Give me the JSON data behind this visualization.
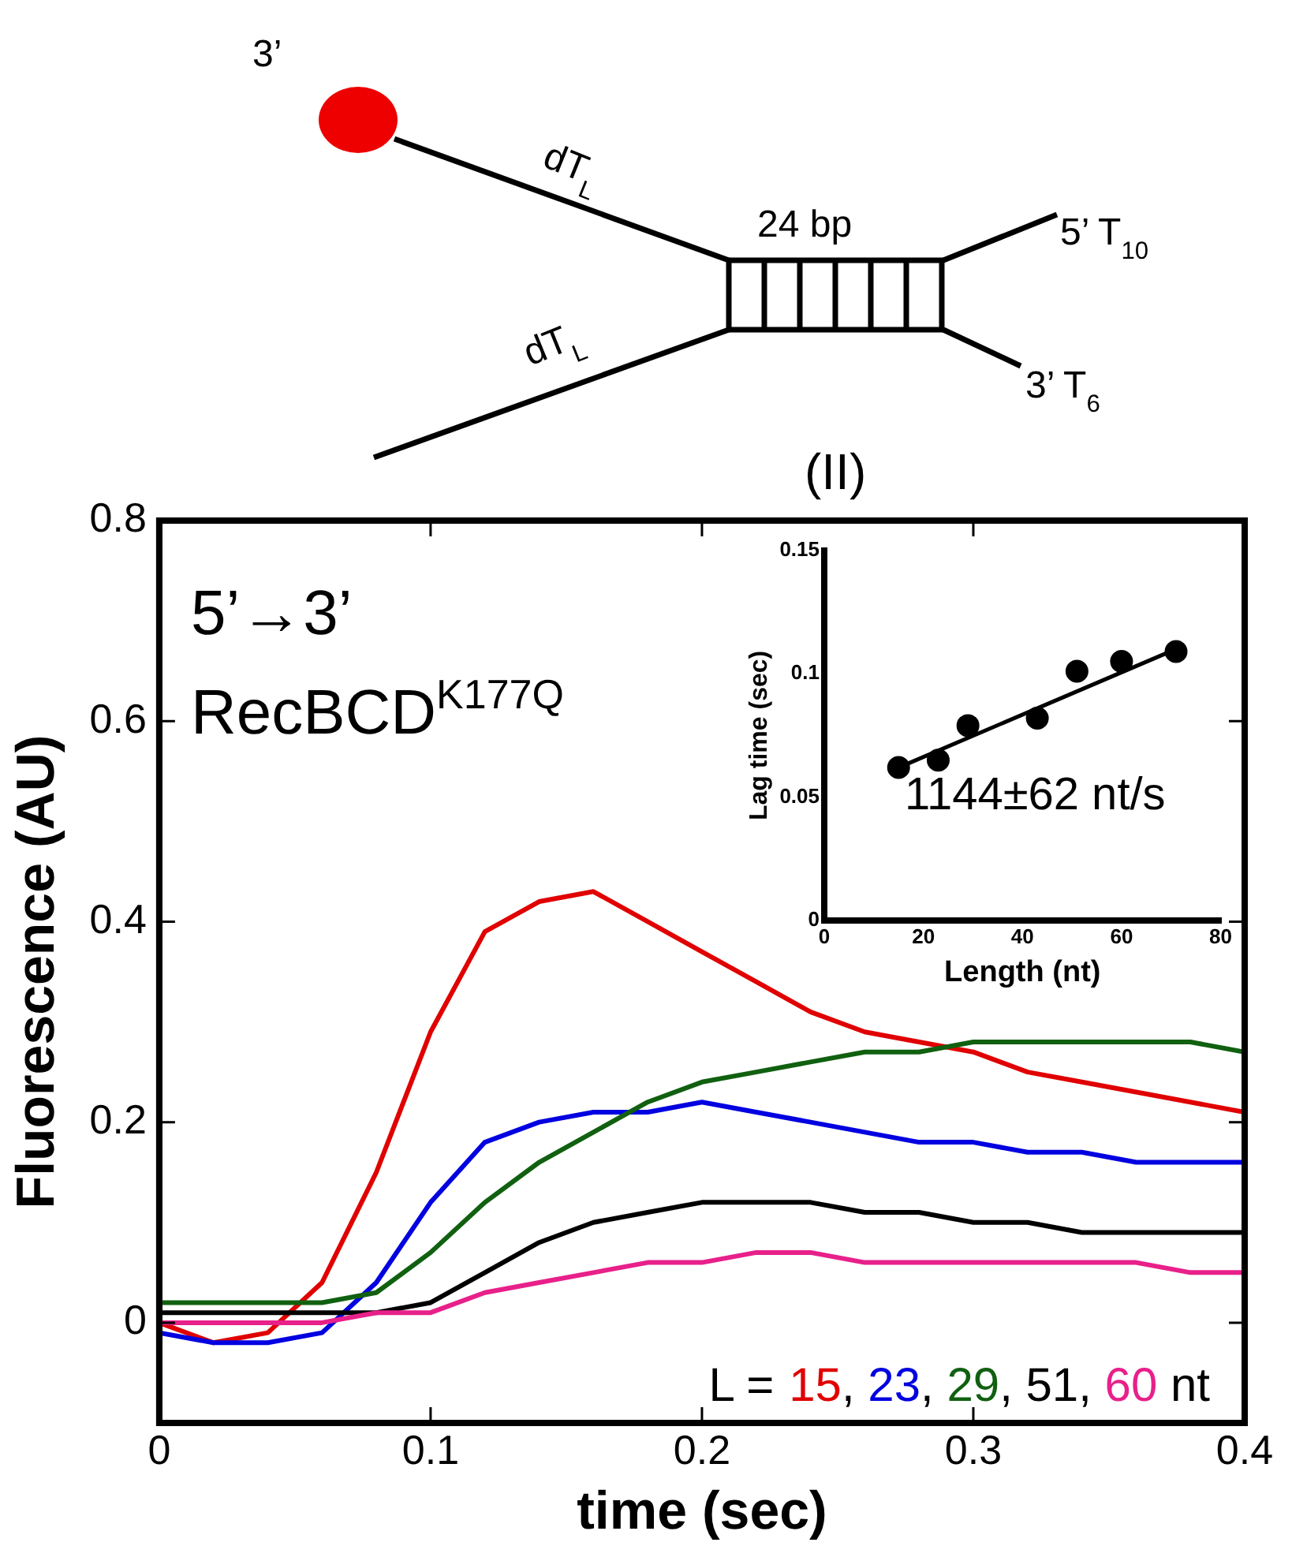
{
  "chart_data": [
    {
      "type": "line",
      "xlabel": "time (sec)",
      "ylabel": "Fluorescence (AU)",
      "legend_title": "L =",
      "x": [
        0,
        0.02,
        0.04,
        0.06,
        0.08,
        0.1,
        0.12,
        0.14,
        0.16,
        0.18,
        0.2,
        0.22,
        0.24,
        0.26,
        0.28,
        0.3,
        0.32,
        0.34,
        0.36,
        0.38,
        0.4
      ],
      "series": [
        {
          "name": "15",
          "color": "#e00000",
          "values": [
            0,
            -0.02,
            -0.01,
            0.04,
            0.15,
            0.29,
            0.39,
            0.42,
            0.43,
            0.4,
            0.37,
            0.34,
            0.31,
            0.29,
            0.28,
            0.27,
            0.25,
            0.24,
            0.23,
            0.22,
            0.21
          ]
        },
        {
          "name": "23",
          "color": "#0000e0",
          "values": [
            -0.01,
            -0.02,
            -0.02,
            -0.01,
            0.04,
            0.12,
            0.18,
            0.2,
            0.21,
            0.21,
            0.22,
            0.21,
            0.2,
            0.19,
            0.18,
            0.18,
            0.17,
            0.17,
            0.16,
            0.16,
            0.16
          ]
        },
        {
          "name": "29",
          "color": "#106010",
          "values": [
            0.02,
            0.02,
            0.02,
            0.02,
            0.03,
            0.07,
            0.12,
            0.16,
            0.19,
            0.22,
            0.24,
            0.25,
            0.26,
            0.27,
            0.27,
            0.28,
            0.28,
            0.28,
            0.28,
            0.28,
            0.27
          ]
        },
        {
          "name": "51",
          "color": "#000000",
          "values": [
            0.01,
            0.01,
            0.01,
            0.01,
            0.01,
            0.02,
            0.05,
            0.08,
            0.1,
            0.11,
            0.12,
            0.12,
            0.12,
            0.11,
            0.11,
            0.1,
            0.1,
            0.09,
            0.09,
            0.09,
            0.09
          ]
        },
        {
          "name": "60",
          "color": "#e8208a",
          "values": [
            0,
            0,
            0,
            0,
            0.01,
            0.01,
            0.03,
            0.04,
            0.05,
            0.06,
            0.06,
            0.07,
            0.07,
            0.06,
            0.06,
            0.06,
            0.06,
            0.06,
            0.06,
            0.05,
            0.05
          ]
        }
      ],
      "xlim": [
        0,
        0.4
      ],
      "xticks": [
        0,
        0.1,
        0.2,
        0.3,
        0.4
      ],
      "ylim": [
        -0.1,
        0.8
      ],
      "yticks": [
        0,
        0.2,
        0.4,
        0.6,
        0.8
      ],
      "grid": false,
      "legend": "bottom right",
      "marker": "none",
      "line_style": "solid",
      "annotations": [
        "3’",
        "dT$_{L}$",
        "dT$_{L}$",
        "24 bp",
        "5’ T$_{10}$",
        "3’ T$_{6}$",
        "(II)",
        "5’→3’",
        "RecBCD$^{K177Q}$",
        "nt",
        ","
      ]
    },
    {
      "type": "scatter",
      "xlabel": "Length (nt)",
      "ylabel": "Lag time (sec)",
      "series": [
        {
          "color": "#000000",
          "marker": "circle",
          "x": [
            15,
            23,
            29,
            43,
            51,
            60,
            71
          ],
          "values": [
            0.062,
            0.065,
            0.079,
            0.082,
            0.101,
            0.105,
            0.109
          ]
        },
        {
          "type": "line",
          "color": "#000000",
          "marker": "none",
          "x": [
            15,
            71
          ],
          "values": [
            0.062,
            0.11
          ]
        }
      ],
      "xlim": [
        0,
        80
      ],
      "xticks": [
        0,
        20,
        40,
        60,
        80
      ],
      "ylim": [
        0,
        0.15
      ],
      "yticks": [
        0,
        0.05,
        0.1,
        0.15
      ],
      "grid": false,
      "legend": false,
      "annotations": [
        "1144±62 nt/s"
      ]
    }
  ]
}
